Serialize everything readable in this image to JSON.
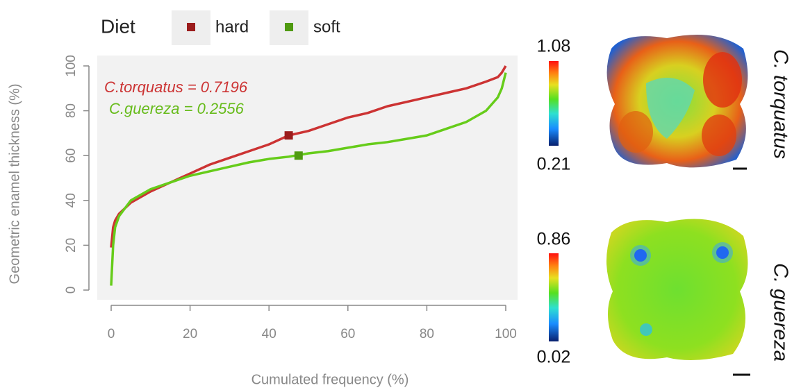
{
  "chart_data": {
    "type": "line",
    "x_label": "Cumulated frequency (%)",
    "y_label": "Geometric enamel thickness (%)",
    "legend_title": "Diet",
    "xlim": [
      0,
      100
    ],
    "xticks": [
      0,
      20,
      40,
      60,
      80,
      100
    ],
    "ylim": [
      0,
      100
    ],
    "yticks": [
      0,
      20,
      40,
      60,
      80,
      100
    ],
    "x": [
      0,
      0.5,
      1,
      2,
      5,
      10,
      15,
      20,
      25,
      30,
      35,
      40,
      45,
      50,
      55,
      60,
      65,
      70,
      75,
      80,
      85,
      90,
      95,
      98,
      99,
      100
    ],
    "series": [
      {
        "name": "hard",
        "color": "#cc3333",
        "marker_color": "#9b1c1c",
        "values": [
          19,
          28,
          31,
          34,
          39,
          44,
          48,
          52,
          56,
          59,
          62,
          65,
          69,
          71,
          74,
          77,
          79,
          82,
          84,
          86,
          88,
          90,
          93,
          95,
          97,
          100
        ],
        "marker": {
          "x": 45,
          "y": 69
        }
      },
      {
        "name": "soft",
        "color": "#66cc1a",
        "marker_color": "#4f9a10",
        "values": [
          2,
          20,
          28,
          33,
          40,
          45,
          48,
          51,
          53,
          55,
          57,
          58.5,
          59.5,
          61,
          62,
          63.5,
          65,
          66,
          67.5,
          69,
          72,
          75,
          80,
          86,
          90,
          97
        ],
        "marker": {
          "x": 47.5,
          "y": 60
        }
      }
    ],
    "annotations": [
      "C.torquatus = 0.7196",
      "C.guereza = 0.2556"
    ]
  },
  "colorbars": [
    {
      "max": 1.08,
      "min": 0.21
    },
    {
      "max": 0.86,
      "min": 0.02
    }
  ],
  "species": [
    "C. torquatus",
    "C. guereza"
  ]
}
